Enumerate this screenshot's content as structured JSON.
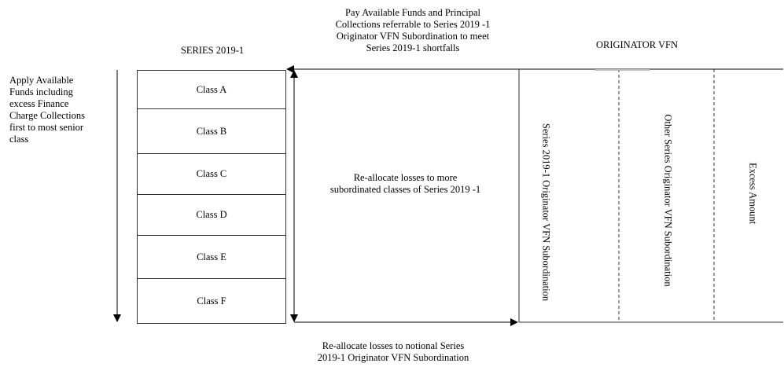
{
  "series_title": "SERIES 2019-1",
  "originator_title": "ORIGINATOR VFN",
  "top_note": "Pay Available Funds and Principal\nCollections referrable to Series 2019 -1\nOriginator VFN Subordination to meet\nSeries 2019-1 shortfalls",
  "left_note": "Apply Available\nFunds including\nexcess Finance\nCharge Collections\nfirst to most senior\nclass",
  "middle_note": "Re-allocate losses to more\nsubordinated classes of Series 2019 -1",
  "bottom_note": "Re-allocate losses to notional Series\n2019-1 Originator VFN Subordination",
  "classes": [
    "Class A",
    "Class B",
    "Class C",
    "Class D",
    "Class E",
    "Class F"
  ],
  "vfn_sections": [
    "Series 2019-1 Originator VFN Subordination",
    "Other Series Originator VFN Subordination",
    "Excess Amount"
  ]
}
